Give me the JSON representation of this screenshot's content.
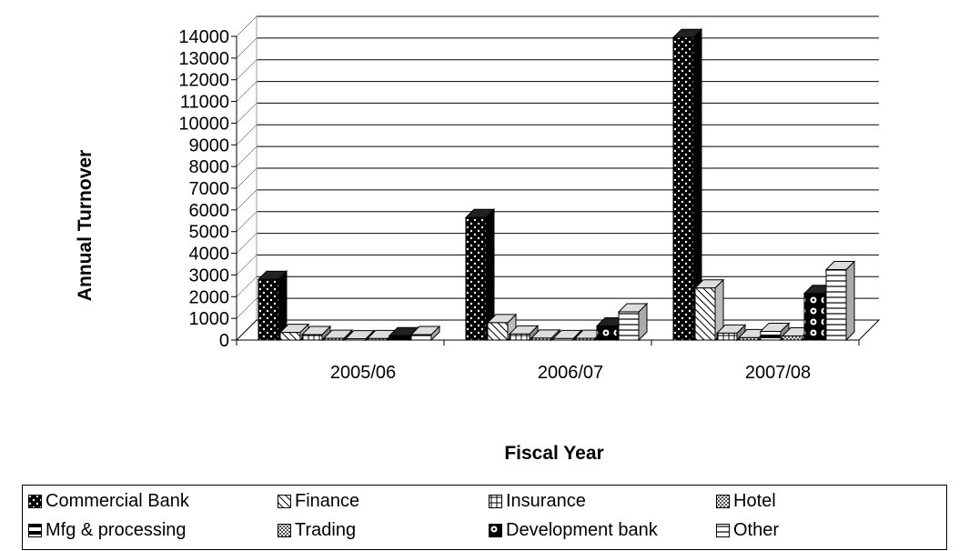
{
  "chart_data": {
    "type": "bar",
    "title": "",
    "xlabel": "Fiscal Year",
    "ylabel": "Annual Turnover",
    "categories": [
      "2005/06",
      "2006/07",
      "2007/08"
    ],
    "ylim": [
      0,
      14000
    ],
    "yticks": [
      0,
      1000,
      2000,
      3000,
      4000,
      5000,
      6000,
      7000,
      8000,
      9000,
      10000,
      11000,
      12000,
      13000,
      14000
    ],
    "grid": true,
    "legend_position": "bottom",
    "series": [
      {
        "name": "Commercial Bank",
        "values": [
          2800,
          5650,
          13950
        ]
      },
      {
        "name": "Finance",
        "values": [
          350,
          800,
          2400
        ]
      },
      {
        "name": "Insurance",
        "values": [
          250,
          280,
          320
        ]
      },
      {
        "name": "Hotel",
        "values": [
          80,
          90,
          110
        ]
      },
      {
        "name": "Mfg & processing",
        "values": [
          60,
          70,
          400
        ]
      },
      {
        "name": "Trading",
        "values": [
          70,
          80,
          190
        ]
      },
      {
        "name": "Development bank",
        "values": [
          200,
          650,
          2150
        ]
      },
      {
        "name": "Other",
        "values": [
          250,
          1300,
          3250
        ]
      }
    ]
  },
  "colors": {
    "Commercial Bank": "#000000",
    "Finance": "#ffffff",
    "Insurance": "#ffffff",
    "Hotel": "#d9d9d9",
    "Mfg & processing": "#ffffff",
    "Trading": "#d9d9d9",
    "Development bank": "#000000",
    "Other": "#ffffff"
  }
}
